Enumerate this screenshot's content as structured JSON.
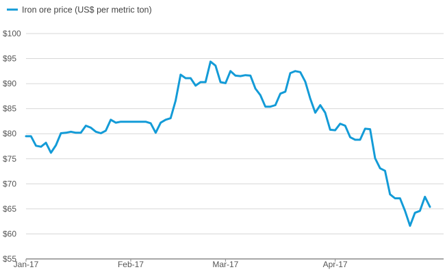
{
  "chart_data": {
    "type": "line",
    "title": "",
    "xlabel": "",
    "ylabel": "",
    "ylim": [
      55,
      100
    ],
    "yticks": [
      55,
      60,
      65,
      70,
      75,
      80,
      85,
      90,
      95,
      100
    ],
    "ytick_labels": [
      "$55",
      "$60",
      "$65",
      "$70",
      "$75",
      "$80",
      "$85",
      "$90",
      "$95",
      "$100"
    ],
    "xtick_labels": [
      "Jan-17",
      "Feb-17",
      "Mar-17",
      "Apr-17"
    ],
    "xtick_positions": [
      0,
      21,
      40,
      62
    ],
    "grid": "horizontal",
    "legend_position": "top-left",
    "series": [
      {
        "name": "Iron ore price (US$ per metric ton)",
        "color": "#139bd7",
        "values": [
          79.5,
          79.5,
          77.6,
          77.4,
          78.2,
          76.2,
          77.7,
          80.1,
          80.2,
          80.4,
          80.2,
          80.2,
          81.6,
          81.2,
          80.4,
          80.1,
          80.6,
          82.8,
          82.2,
          82.4,
          82.4,
          82.4,
          82.4,
          82.4,
          82.4,
          82.1,
          80.2,
          82.2,
          82.8,
          83.1,
          86.6,
          91.8,
          91.1,
          91.1,
          89.6,
          90.3,
          90.3,
          94.4,
          93.6,
          90.3,
          90.1,
          92.5,
          91.6,
          91.5,
          91.7,
          91.6,
          89.0,
          87.7,
          85.4,
          85.4,
          85.7,
          88.0,
          88.4,
          92.1,
          92.5,
          92.3,
          90.4,
          87.0,
          84.2,
          85.7,
          84.2,
          80.8,
          80.7,
          82.0,
          81.6,
          79.3,
          78.8,
          78.8,
          81.0,
          80.9,
          75.1,
          73.1,
          72.6,
          67.9,
          67.1,
          67.1,
          64.6,
          61.6,
          64.2,
          64.6,
          67.4,
          65.4
        ]
      }
    ]
  },
  "colors": {
    "line": "#139bd7",
    "grid": "#d7d7d7",
    "axis": "#8a8a8a",
    "text": "#555555"
  }
}
